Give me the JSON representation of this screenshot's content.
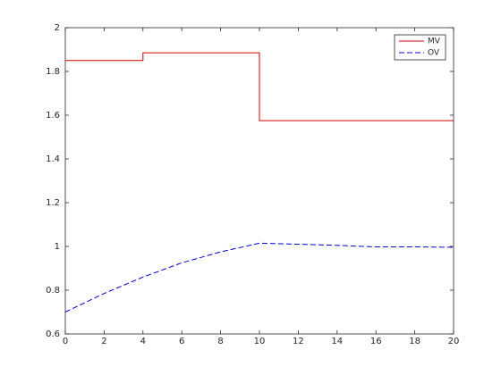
{
  "chart_data": {
    "type": "line",
    "xlim": [
      0,
      20
    ],
    "xticks": [
      0,
      2,
      4,
      6,
      8,
      10,
      12,
      14,
      16,
      18,
      20
    ],
    "ylim": [
      0.6,
      2
    ],
    "yticks": [
      0.6,
      0.8,
      1,
      1.2,
      1.4,
      1.6,
      1.8,
      2
    ],
    "legend": "upper right",
    "series": [
      {
        "name": "MV",
        "color": "#d00000",
        "dash": "solid",
        "x": [
          0,
          4,
          4,
          10,
          10,
          20
        ],
        "values": [
          1.85,
          1.85,
          1.885,
          1.885,
          1.575,
          1.575
        ]
      },
      {
        "name": "OV",
        "color": "#0000d0",
        "dash": "dashed",
        "x": [
          0,
          2,
          4,
          6,
          8,
          10,
          12,
          14,
          16,
          18,
          20
        ],
        "values": [
          0.7,
          0.785,
          0.86,
          0.925,
          0.975,
          1.015,
          1.01,
          1.005,
          0.998,
          0.998,
          0.996
        ]
      }
    ]
  }
}
